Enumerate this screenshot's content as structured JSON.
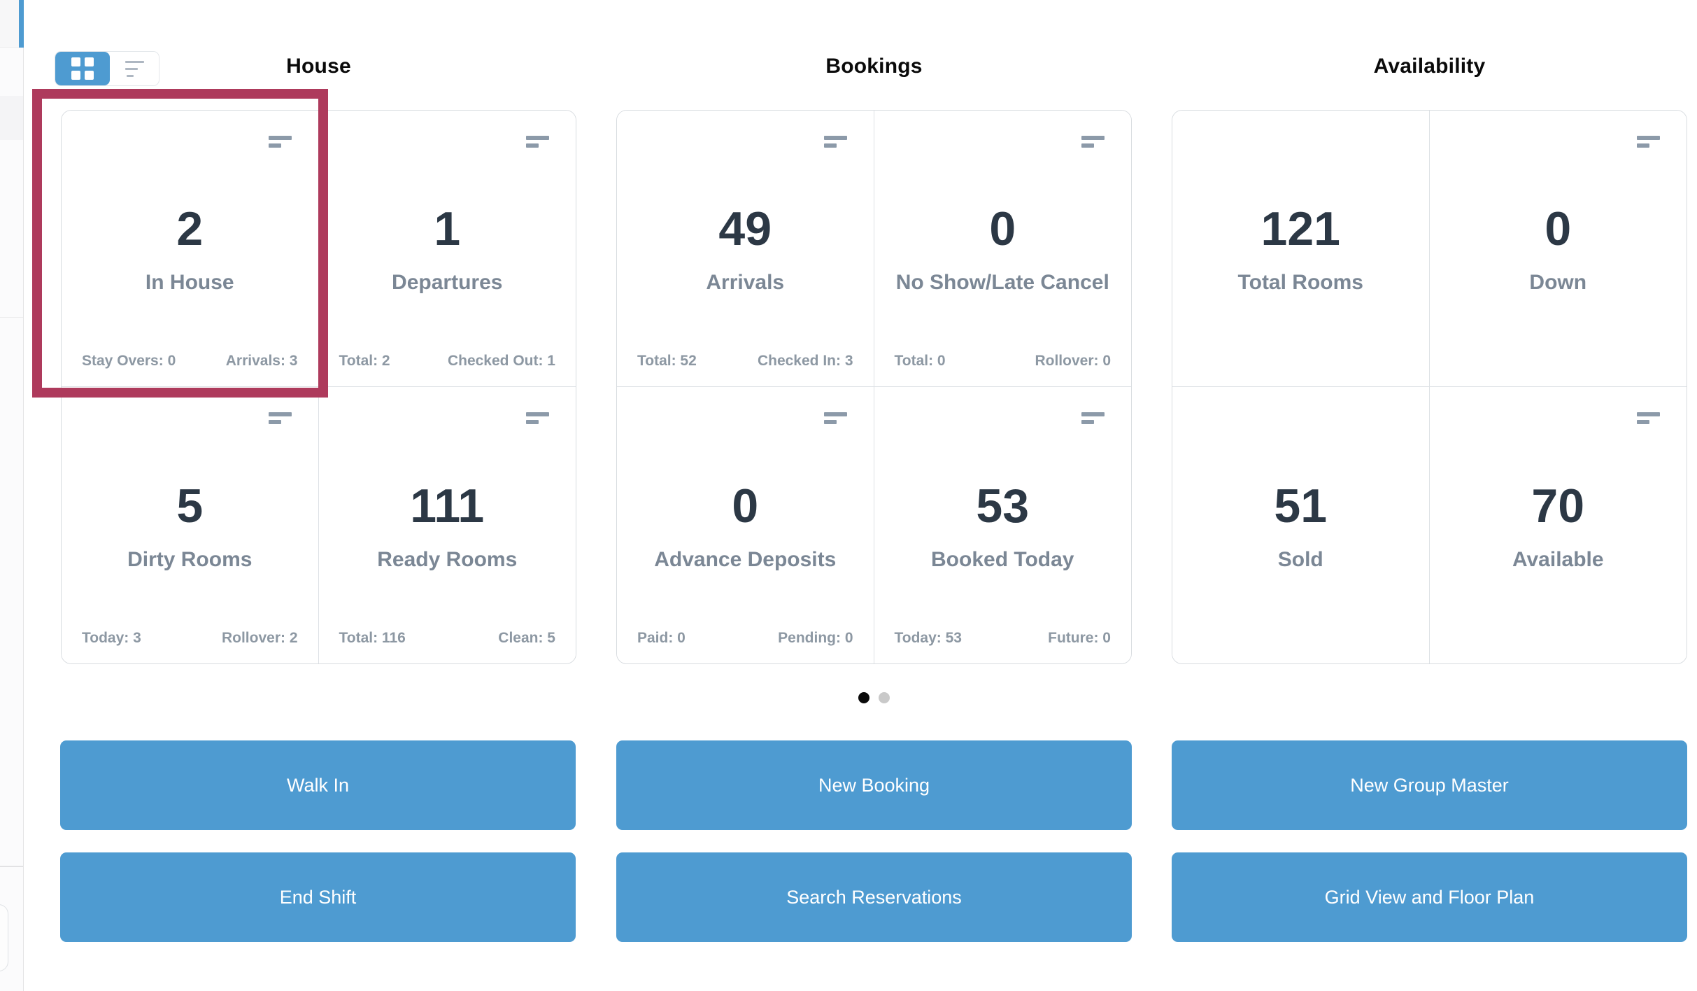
{
  "colors": {
    "accent_blue": "#4e9bd1",
    "highlight_red": "#ae3a5c",
    "stat_number": "#2c3845",
    "stat_label": "#7b8795",
    "stat_footer": "#8d98a3"
  },
  "view_toggle": {
    "active_view": "grid",
    "grid_icon": "grid-2x2-squares",
    "list_icon": "list-lines"
  },
  "sections": [
    {
      "title": "House",
      "cards": [
        {
          "value": "2",
          "label": "In House",
          "stat_left": "Stay Overs: 0",
          "stat_right": "Arrivals: 3",
          "highlighted": true
        },
        {
          "value": "1",
          "label": "Departures",
          "stat_left": "Total: 2",
          "stat_right": "Checked Out: 1"
        },
        {
          "value": "5",
          "label": "Dirty Rooms",
          "stat_left": "Today: 3",
          "stat_right": "Rollover: 2"
        },
        {
          "value": "111",
          "label": "Ready Rooms",
          "stat_left": "Total: 116",
          "stat_right": "Clean: 5"
        }
      ]
    },
    {
      "title": "Bookings",
      "cards": [
        {
          "value": "49",
          "label": "Arrivals",
          "stat_left": "Total: 52",
          "stat_right": "Checked In: 3"
        },
        {
          "value": "0",
          "label": "No Show/Late Cancel",
          "stat_left": "Total: 0",
          "stat_right": "Rollover: 0"
        },
        {
          "value": "0",
          "label": "Advance Deposits",
          "stat_left": "Paid: 0",
          "stat_right": "Pending: 0"
        },
        {
          "value": "53",
          "label": "Booked Today",
          "stat_left": "Today: 53",
          "stat_right": "Future: 0"
        }
      ]
    },
    {
      "title": "Availability",
      "cards": [
        {
          "value": "121",
          "label": "Total Rooms"
        },
        {
          "value": "0",
          "label": "Down"
        },
        {
          "value": "51",
          "label": "Sold"
        },
        {
          "value": "70",
          "label": "Available"
        }
      ]
    }
  ],
  "pagination": {
    "page_count": 2,
    "active_page": 1
  },
  "actions": {
    "walk_in": "Walk In",
    "new_booking": "New Booking",
    "new_group_master": "New Group Master",
    "end_shift": "End Shift",
    "search_reservations": "Search Reservations",
    "grid_view_floor_plan": "Grid View and Floor Plan"
  }
}
